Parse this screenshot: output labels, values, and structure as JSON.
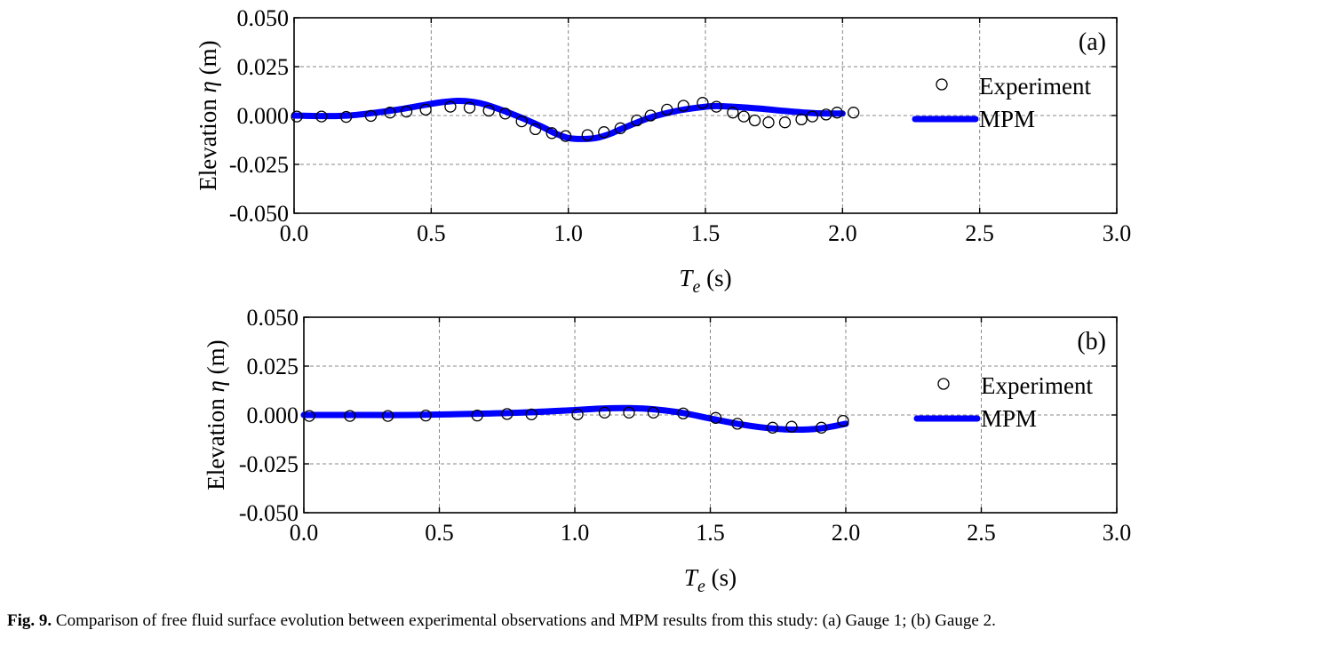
{
  "chart_data": [
    {
      "type": "line",
      "panel_label": "(a)",
      "ylabel_prefix": "Elevation ",
      "ylabel_symbol": "η",
      "ylabel_unit": " (m)",
      "xlabel_symbol": "T",
      "xlabel_sub": "e",
      "xlabel_unit": " (s)",
      "xlim": [
        0,
        3
      ],
      "ylim": [
        -0.05,
        0.05
      ],
      "xticks": [
        "0.0",
        "0.5",
        "1.0",
        "1.5",
        "2.0",
        "2.5",
        "3.0"
      ],
      "yticks": [
        "0.050",
        "0.025",
        "0.000",
        "-0.025",
        "-0.050"
      ],
      "grid": true,
      "legend_position": "right",
      "series": [
        {
          "name": "Experiment",
          "marker": "open-circle",
          "color": "#000000",
          "x": [
            0.01,
            0.1,
            0.19,
            0.28,
            0.35,
            0.41,
            0.48,
            0.57,
            0.64,
            0.71,
            0.77,
            0.83,
            0.88,
            0.94,
            0.99,
            1.07,
            1.13,
            1.19,
            1.25,
            1.3,
            1.36,
            1.42,
            1.49,
            1.54,
            1.6,
            1.64,
            1.68,
            1.73,
            1.79,
            1.85,
            1.89,
            1.94,
            1.98,
            2.04
          ],
          "y": [
            -0.0005,
            -0.0005,
            -0.0007,
            -0.0002,
            0.0015,
            0.002,
            0.003,
            0.0045,
            0.004,
            0.0025,
            0.001,
            -0.003,
            -0.007,
            -0.009,
            -0.0105,
            -0.01,
            -0.0085,
            -0.0065,
            -0.0025,
            0.0,
            0.003,
            0.005,
            0.0065,
            0.0045,
            0.0015,
            -0.0005,
            -0.0025,
            -0.0035,
            -0.0035,
            -0.002,
            -0.0005,
            0.0005,
            0.0015,
            0.0015
          ]
        },
        {
          "name": "MPM",
          "marker": "line",
          "color": "#0000ff",
          "x": [
            0.0,
            0.1,
            0.2,
            0.3,
            0.4,
            0.5,
            0.55,
            0.6,
            0.65,
            0.7,
            0.8,
            0.9,
            0.95,
            1.0,
            1.05,
            1.1,
            1.15,
            1.2,
            1.3,
            1.4,
            1.5,
            1.55,
            1.6,
            1.7,
            1.8,
            1.9,
            2.0
          ],
          "y": [
            0.0,
            -0.0003,
            0.0,
            0.0015,
            0.0035,
            0.006,
            0.007,
            0.0075,
            0.007,
            0.0055,
            0.0005,
            -0.0055,
            -0.009,
            -0.0115,
            -0.012,
            -0.0115,
            -0.0095,
            -0.0065,
            -0.001,
            0.0025,
            0.0045,
            0.0048,
            0.0045,
            0.0035,
            0.0022,
            0.0012,
            0.001
          ]
        }
      ]
    },
    {
      "type": "line",
      "panel_label": "(b)",
      "ylabel_prefix": "Elevation ",
      "ylabel_symbol": "η",
      "ylabel_unit": " (m)",
      "xlabel_symbol": "T",
      "xlabel_sub": "e",
      "xlabel_unit": " (s)",
      "xlim": [
        0,
        3
      ],
      "ylim": [
        -0.05,
        0.05
      ],
      "xticks": [
        "0.0",
        "0.5",
        "1.0",
        "1.5",
        "2.0",
        "2.5",
        "3.0"
      ],
      "yticks": [
        "0.050",
        "0.025",
        "0.000",
        "-0.025",
        "-0.050"
      ],
      "grid": true,
      "legend_position": "right",
      "series": [
        {
          "name": "Experiment",
          "marker": "open-circle",
          "color": "#000000",
          "x": [
            0.02,
            0.17,
            0.31,
            0.45,
            0.64,
            0.75,
            0.84,
            1.01,
            1.11,
            1.2,
            1.29,
            1.4,
            1.52,
            1.6,
            1.73,
            1.8,
            1.91,
            1.99
          ],
          "y": [
            -0.0005,
            -0.0005,
            -0.0005,
            -0.0003,
            -0.0003,
            0.0005,
            0.0003,
            0.0003,
            0.0012,
            0.0012,
            0.0012,
            0.0008,
            -0.0015,
            -0.0045,
            -0.0065,
            -0.006,
            -0.0065,
            -0.003
          ]
        },
        {
          "name": "MPM",
          "marker": "line",
          "color": "#0000ff",
          "x": [
            0.0,
            0.2,
            0.4,
            0.6,
            0.8,
            1.0,
            1.1,
            1.2,
            1.3,
            1.4,
            1.5,
            1.6,
            1.7,
            1.8,
            1.9,
            2.0
          ],
          "y": [
            0.0,
            0.0,
            0.0,
            0.0005,
            0.0012,
            0.0025,
            0.0033,
            0.0035,
            0.0028,
            0.001,
            -0.0018,
            -0.0045,
            -0.0065,
            -0.0075,
            -0.007,
            -0.0045
          ]
        }
      ]
    }
  ],
  "caption": {
    "label": "Fig. 9.",
    "text": " Comparison of free fluid surface evolution between experimental observations and MPM results from this study: (a) Gauge 1; (b) Gauge 2."
  }
}
